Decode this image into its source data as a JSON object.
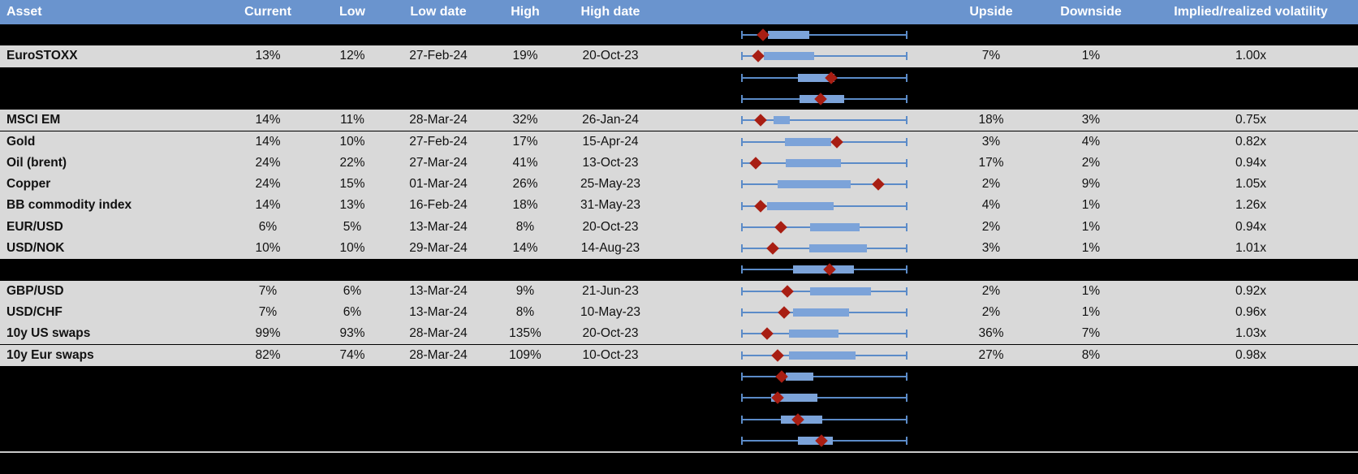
{
  "colors": {
    "header_bg": "#6a94ce",
    "header_text": "#ffffff",
    "row_bg": "#d9d9d9",
    "black_bg": "#000000",
    "cell_text": "#111111",
    "box_fill": "#7ca3d9",
    "whisker": "#5b8bc8",
    "diamond": "#a81e13",
    "footer_line": "#c9c9c9"
  },
  "header": {
    "asset": "Asset",
    "current": "Current",
    "low": "Low",
    "low_date": "Low date",
    "high": "High",
    "high_date": "High date",
    "upside": "Upside",
    "downside": "Downside",
    "impl_realized": "Implied/realized volatility"
  },
  "rows": [
    {
      "kind": "black",
      "plot": {
        "diamond": 0.13,
        "box": [
          0.16,
          0.41
        ]
      }
    },
    {
      "kind": "data",
      "asset": "EuroSTOXX",
      "current": "13%",
      "low": "12%",
      "low_date": "27-Feb-24",
      "high": "19%",
      "high_date": "20-Oct-23",
      "upside": "7%",
      "downside": "1%",
      "impl_realized": "1.00x",
      "plot": {
        "diamond": 0.1,
        "box": [
          0.135,
          0.44
        ]
      }
    },
    {
      "kind": "black",
      "plot": {
        "diamond": 0.54,
        "box": [
          0.34,
          0.56
        ]
      }
    },
    {
      "kind": "black",
      "plot": {
        "diamond": 0.48,
        "box": [
          0.35,
          0.62
        ]
      }
    },
    {
      "kind": "data",
      "asset": "MSCI EM",
      "current": "14%",
      "low": "11%",
      "low_date": "28-Mar-24",
      "high": "32%",
      "high_date": "26-Jan-24",
      "upside": "18%",
      "downside": "3%",
      "impl_realized": "0.75x",
      "plot": {
        "diamond": 0.115,
        "box": [
          0.195,
          0.295
        ]
      }
    },
    {
      "kind": "data",
      "asset": "Gold",
      "current": "14%",
      "low": "10%",
      "low_date": "27-Feb-24",
      "high": "17%",
      "high_date": "15-Apr-24",
      "upside": "3%",
      "downside": "4%",
      "impl_realized": "0.82x",
      "plot": {
        "diamond": 0.575,
        "box": [
          0.265,
          0.54
        ]
      }
    },
    {
      "kind": "data",
      "asset": "Oil (brent)",
      "current": "24%",
      "low": "22%",
      "low_date": "27-Mar-24",
      "high": "41%",
      "high_date": "13-Oct-23",
      "upside": "17%",
      "downside": "2%",
      "impl_realized": "0.94x",
      "plot": {
        "diamond": 0.09,
        "box": [
          0.27,
          0.6
        ]
      }
    },
    {
      "kind": "data",
      "asset": "Copper",
      "current": "24%",
      "low": "15%",
      "low_date": "01-Mar-24",
      "high": "26%",
      "high_date": "25-May-23",
      "upside": "2%",
      "downside": "9%",
      "impl_realized": "1.05x",
      "plot": {
        "diamond": 0.825,
        "box": [
          0.22,
          0.66
        ]
      }
    },
    {
      "kind": "data",
      "asset": "BB commodity index",
      "current": "14%",
      "low": "13%",
      "low_date": "16-Feb-24",
      "high": "18%",
      "high_date": "31-May-23",
      "upside": "4%",
      "downside": "1%",
      "impl_realized": "1.26x",
      "plot": {
        "diamond": 0.115,
        "box": [
          0.155,
          0.555
        ]
      }
    },
    {
      "kind": "data",
      "asset": "EUR/USD",
      "current": "6%",
      "low": "5%",
      "low_date": "13-Mar-24",
      "high": "8%",
      "high_date": "20-Oct-23",
      "upside": "2%",
      "downside": "1%",
      "impl_realized": "0.94x",
      "plot": {
        "diamond": 0.24,
        "box": [
          0.415,
          0.71
        ]
      }
    },
    {
      "kind": "data",
      "asset": "USD/NOK",
      "current": "10%",
      "low": "10%",
      "low_date": "29-Mar-24",
      "high": "14%",
      "high_date": "14-Aug-23",
      "upside": "3%",
      "downside": "1%",
      "impl_realized": "1.01x",
      "plot": {
        "diamond": 0.19,
        "box": [
          0.41,
          0.755
        ]
      }
    },
    {
      "kind": "black",
      "plot": {
        "diamond": 0.53,
        "box": [
          0.31,
          0.68
        ]
      }
    },
    {
      "kind": "data",
      "asset": "GBP/USD",
      "current": "7%",
      "low": "6%",
      "low_date": "13-Mar-24",
      "high": "9%",
      "high_date": "21-Jun-23",
      "upside": "2%",
      "downside": "1%",
      "impl_realized": "0.92x",
      "plot": {
        "diamond": 0.28,
        "box": [
          0.415,
          0.78
        ]
      }
    },
    {
      "kind": "data",
      "asset": "USD/CHF",
      "current": "7%",
      "low": "6%",
      "low_date": "13-Mar-24",
      "high": "8%",
      "high_date": "10-May-23",
      "upside": "2%",
      "downside": "1%",
      "impl_realized": "0.96x",
      "plot": {
        "diamond": 0.26,
        "box": [
          0.31,
          0.65
        ]
      }
    },
    {
      "kind": "data",
      "asset": "10y US swaps",
      "current": "99%",
      "low": "93%",
      "low_date": "28-Mar-24",
      "high": "135%",
      "high_date": "20-Oct-23",
      "upside": "36%",
      "downside": "7%",
      "impl_realized": "1.03x",
      "plot": {
        "diamond": 0.155,
        "box": [
          0.29,
          0.585
        ]
      }
    },
    {
      "kind": "data",
      "asset": "10y Eur swaps",
      "current": "82%",
      "low": "74%",
      "low_date": "28-Mar-24",
      "high": "109%",
      "high_date": "10-Oct-23",
      "upside": "27%",
      "downside": "8%",
      "impl_realized": "0.98x",
      "plot": {
        "diamond": 0.22,
        "box": [
          0.29,
          0.69
        ]
      }
    },
    {
      "kind": "black",
      "plot": {
        "diamond": 0.245,
        "box": [
          0.27,
          0.435
        ]
      }
    },
    {
      "kind": "black",
      "plot": {
        "diamond": 0.22,
        "box": [
          0.18,
          0.46
        ]
      }
    },
    {
      "kind": "black",
      "plot": {
        "diamond": 0.34,
        "box": [
          0.24,
          0.49
        ]
      }
    },
    {
      "kind": "black",
      "plot": {
        "diamond": 0.485,
        "box": [
          0.34,
          0.55
        ]
      }
    }
  ],
  "chart_data": {
    "type": "table",
    "columns": [
      "Asset",
      "Current",
      "Low",
      "Low date",
      "High",
      "High date",
      "Upside",
      "Downside",
      "Implied/realized volatility"
    ],
    "rows": [
      [
        "EuroSTOXX",
        "13%",
        "12%",
        "27-Feb-24",
        "19%",
        "20-Oct-23",
        "7%",
        "1%",
        "1.00x"
      ],
      [
        "MSCI EM",
        "14%",
        "11%",
        "28-Mar-24",
        "32%",
        "26-Jan-24",
        "18%",
        "3%",
        "0.75x"
      ],
      [
        "Gold",
        "14%",
        "10%",
        "27-Feb-24",
        "17%",
        "15-Apr-24",
        "3%",
        "4%",
        "0.82x"
      ],
      [
        "Oil (brent)",
        "24%",
        "22%",
        "27-Mar-24",
        "41%",
        "13-Oct-23",
        "17%",
        "2%",
        "0.94x"
      ],
      [
        "Copper",
        "24%",
        "15%",
        "01-Mar-24",
        "26%",
        "25-May-23",
        "2%",
        "9%",
        "1.05x"
      ],
      [
        "BB commodity index",
        "14%",
        "13%",
        "16-Feb-24",
        "18%",
        "31-May-23",
        "4%",
        "1%",
        "1.26x"
      ],
      [
        "EUR/USD",
        "6%",
        "5%",
        "13-Mar-24",
        "8%",
        "20-Oct-23",
        "2%",
        "1%",
        "0.94x"
      ],
      [
        "USD/NOK",
        "10%",
        "10%",
        "29-Mar-24",
        "14%",
        "14-Aug-23",
        "3%",
        "1%",
        "1.01x"
      ],
      [
        "GBP/USD",
        "7%",
        "6%",
        "13-Mar-24",
        "9%",
        "21-Jun-23",
        "2%",
        "1%",
        "0.92x"
      ],
      [
        "USD/CHF",
        "7%",
        "6%",
        "13-Mar-24",
        "8%",
        "10-May-23",
        "2%",
        "1%",
        "0.96x"
      ],
      [
        "10y US swaps",
        "99%",
        "93%",
        "28-Mar-24",
        "135%",
        "20-Oct-23",
        "36%",
        "7%",
        "1.03x"
      ],
      [
        "10y Eur swaps",
        "82%",
        "74%",
        "28-Mar-24",
        "109%",
        "10-Oct-23",
        "27%",
        "8%",
        "0.98x"
      ]
    ],
    "boxplot_note": "Each row shows a min-max whisker spanning the full cell range (0-1), a blue box and a red diamond marker; positions below are fractions of the whisker span, top-to-bottom including blacked-out rows.",
    "boxplots": [
      {
        "row": 1,
        "redacted": true,
        "marker": 0.13,
        "box": [
          0.16,
          0.41
        ]
      },
      {
        "row": 2,
        "asset": "EuroSTOXX",
        "marker": 0.1,
        "box": [
          0.135,
          0.44
        ]
      },
      {
        "row": 3,
        "redacted": true,
        "marker": 0.54,
        "box": [
          0.34,
          0.56
        ]
      },
      {
        "row": 4,
        "redacted": true,
        "marker": 0.48,
        "box": [
          0.35,
          0.62
        ]
      },
      {
        "row": 5,
        "asset": "MSCI EM",
        "marker": 0.115,
        "box": [
          0.195,
          0.295
        ]
      },
      {
        "row": 6,
        "asset": "Gold",
        "marker": 0.575,
        "box": [
          0.265,
          0.54
        ]
      },
      {
        "row": 7,
        "asset": "Oil (brent)",
        "marker": 0.09,
        "box": [
          0.27,
          0.6
        ]
      },
      {
        "row": 8,
        "asset": "Copper",
        "marker": 0.825,
        "box": [
          0.22,
          0.66
        ]
      },
      {
        "row": 9,
        "asset": "BB commodity index",
        "marker": 0.115,
        "box": [
          0.155,
          0.555
        ]
      },
      {
        "row": 10,
        "asset": "EUR/USD",
        "marker": 0.24,
        "box": [
          0.415,
          0.71
        ]
      },
      {
        "row": 11,
        "asset": "USD/NOK",
        "marker": 0.19,
        "box": [
          0.41,
          0.755
        ]
      },
      {
        "row": 12,
        "redacted": true,
        "marker": 0.53,
        "box": [
          0.31,
          0.68
        ]
      },
      {
        "row": 13,
        "asset": "GBP/USD",
        "marker": 0.28,
        "box": [
          0.415,
          0.78
        ]
      },
      {
        "row": 14,
        "asset": "USD/CHF",
        "marker": 0.26,
        "box": [
          0.31,
          0.65
        ]
      },
      {
        "row": 15,
        "asset": "10y US swaps",
        "marker": 0.155,
        "box": [
          0.29,
          0.585
        ]
      },
      {
        "row": 16,
        "asset": "10y Eur swaps",
        "marker": 0.22,
        "box": [
          0.29,
          0.69
        ]
      },
      {
        "row": 17,
        "redacted": true,
        "marker": 0.245,
        "box": [
          0.27,
          0.435
        ]
      },
      {
        "row": 18,
        "redacted": true,
        "marker": 0.22,
        "box": [
          0.18,
          0.46
        ]
      },
      {
        "row": 19,
        "redacted": true,
        "marker": 0.34,
        "box": [
          0.24,
          0.49
        ]
      },
      {
        "row": 20,
        "redacted": true,
        "marker": 0.485,
        "box": [
          0.34,
          0.55
        ]
      }
    ],
    "legend": false,
    "grid": false
  }
}
